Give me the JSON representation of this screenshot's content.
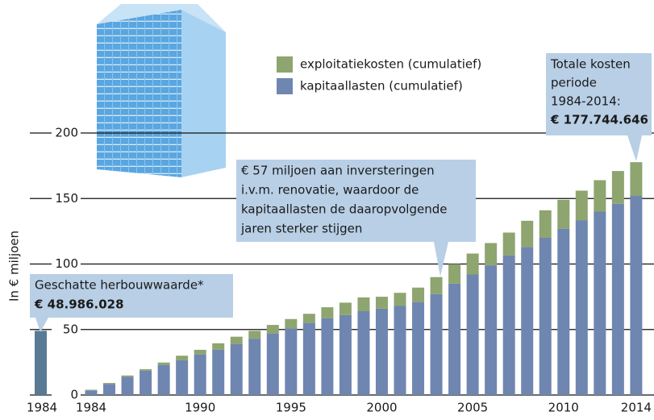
{
  "chart_data": {
    "type": "stacked_bar",
    "ylabel": "In € miljoen",
    "x": [
      1984,
      1985,
      1986,
      1987,
      1988,
      1989,
      1990,
      1991,
      1992,
      1993,
      1994,
      1995,
      1996,
      1997,
      1998,
      1999,
      2000,
      2001,
      2002,
      2003,
      2004,
      2005,
      2006,
      2007,
      2008,
      2009,
      2010,
      2011,
      2012,
      2013,
      2014
    ],
    "xticks": [
      1984,
      1990,
      1995,
      2000,
      2005,
      2010,
      2014
    ],
    "ylim": [
      0,
      200
    ],
    "yticks": [
      0,
      50,
      100,
      150,
      200
    ],
    "grid": true,
    "series": [
      {
        "name": "kapitaallasten (cumulatief)",
        "color": "#6f86b0",
        "values": [
          3.5,
          8.5,
          14,
          18.5,
          23,
          26.5,
          31,
          34.5,
          39,
          43,
          47,
          51,
          55,
          58.5,
          61,
          64,
          66,
          68,
          71,
          77,
          85,
          92,
          99,
          106.5,
          113,
          120,
          127,
          133.5,
          140,
          146,
          152
        ]
      },
      {
        "name": "exploitatiekosten (cumulatief)",
        "color": "#8ea56f",
        "values": [
          0.5,
          0.7,
          0.9,
          1.2,
          1.8,
          3.5,
          3.5,
          5,
          5.5,
          6,
          6.5,
          7,
          7,
          8.5,
          9.5,
          10.5,
          9,
          10,
          11,
          13,
          15,
          16,
          17,
          17.5,
          20,
          21,
          22,
          22.5,
          24,
          25,
          25.744646
        ]
      }
    ],
    "reference_bar": {
      "label": "1984",
      "value": 48.986028,
      "color": "#587a94"
    },
    "annotations": {
      "herbouwwaarde": [
        "Geschatte herbouwwaarde*",
        "€ 48.986.028"
      ],
      "renovatie": [
        "€ 57 miljoen aan inversteringen",
        "i.v.m. renovatie, waardoor de",
        "kapitaallasten de daaropvolgende",
        "jaren sterker stijgen"
      ],
      "totaal": [
        "Totale kosten",
        "periode",
        "1984-2014:",
        "€ 177.744.646"
      ]
    }
  }
}
